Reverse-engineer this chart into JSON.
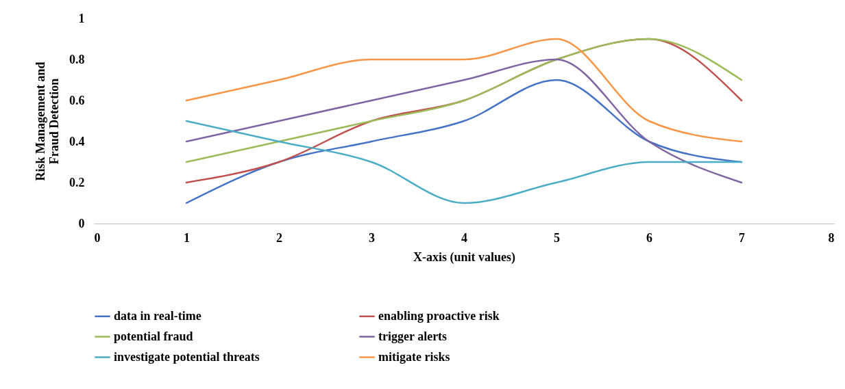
{
  "chart_data": {
    "type": "line",
    "xlabel": "X-axis (unit values)",
    "ylabel": "Risk Management and Fraud Detection",
    "x": [
      1,
      2,
      3,
      4,
      5,
      6,
      7
    ],
    "series": [
      {
        "name": "data in real-time",
        "color": "#4472c4",
        "values": [
          0.1,
          0.3,
          0.4,
          0.5,
          0.7,
          0.4,
          0.3
        ]
      },
      {
        "name": "enabling proactive risk",
        "color": "#c0504d",
        "values": [
          0.2,
          0.3,
          0.5,
          0.6,
          0.8,
          0.9,
          0.6
        ]
      },
      {
        "name": "potential fraud",
        "color": "#9bbb59",
        "values": [
          0.3,
          0.4,
          0.5,
          0.6,
          0.8,
          0.9,
          0.7
        ]
      },
      {
        "name": "trigger alerts",
        "color": "#8064a2",
        "values": [
          0.4,
          0.5,
          0.6,
          0.7,
          0.8,
          0.4,
          0.2
        ]
      },
      {
        "name": "investigate potential threats",
        "color": "#4bacc6",
        "values": [
          0.5,
          0.4,
          0.3,
          0.1,
          0.2,
          0.3,
          0.3
        ]
      },
      {
        "name": "mitigate risks",
        "color": "#f79646",
        "values": [
          0.6,
          0.7,
          0.8,
          0.8,
          0.9,
          0.5,
          0.4
        ]
      }
    ],
    "xlim": [
      0,
      8
    ],
    "xticks": [
      0,
      1,
      2,
      3,
      4,
      5,
      6,
      7,
      8
    ],
    "ylim": [
      0,
      1
    ],
    "yticks": [
      0,
      0.2,
      0.4,
      0.6,
      0.8,
      1
    ],
    "legend": "bottom",
    "line_style": "solid"
  }
}
